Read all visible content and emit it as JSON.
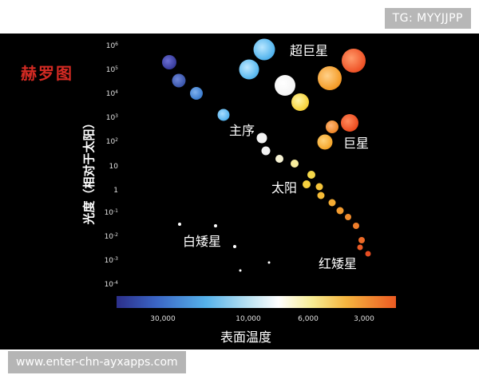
{
  "watermark": {
    "top_right": "TG: MYYJJPP",
    "bottom_left": "www.enter-chn-ayxapps.com"
  },
  "diagram": {
    "title": "赫罗图",
    "y_axis_label": "光度（相对于太阳）",
    "x_axis_label": "表面温度",
    "y_ticks": [
      {
        "base": "10",
        "exp": "6"
      },
      {
        "base": "10",
        "exp": "5"
      },
      {
        "base": "10",
        "exp": "4"
      },
      {
        "base": "10",
        "exp": "3"
      },
      {
        "base": "10",
        "exp": "2"
      },
      {
        "base": "10",
        "exp": ""
      },
      {
        "base": "1",
        "exp": ""
      },
      {
        "base": "10",
        "exp": "-1"
      },
      {
        "base": "10",
        "exp": "-2"
      },
      {
        "base": "10",
        "exp": "-3"
      },
      {
        "base": "10",
        "exp": "-4"
      }
    ],
    "x_ticks": [
      "30,000",
      "10,000",
      "6,000",
      "3,000"
    ],
    "regions": {
      "supergiants": "超巨星",
      "main_sequence": "主序",
      "giants": "巨星",
      "sun": "太阳",
      "white_dwarfs": "白矮星",
      "red_dwarfs": "红矮星"
    },
    "colors": {
      "title": "#d32a23",
      "background": "#000000",
      "colorbar": [
        "#2c2f8a",
        "#3a64c4",
        "#56b2ea",
        "#bfe4f2",
        "#ffffff",
        "#f7ec94",
        "#f5b640",
        "#ec5a22"
      ]
    }
  }
}
